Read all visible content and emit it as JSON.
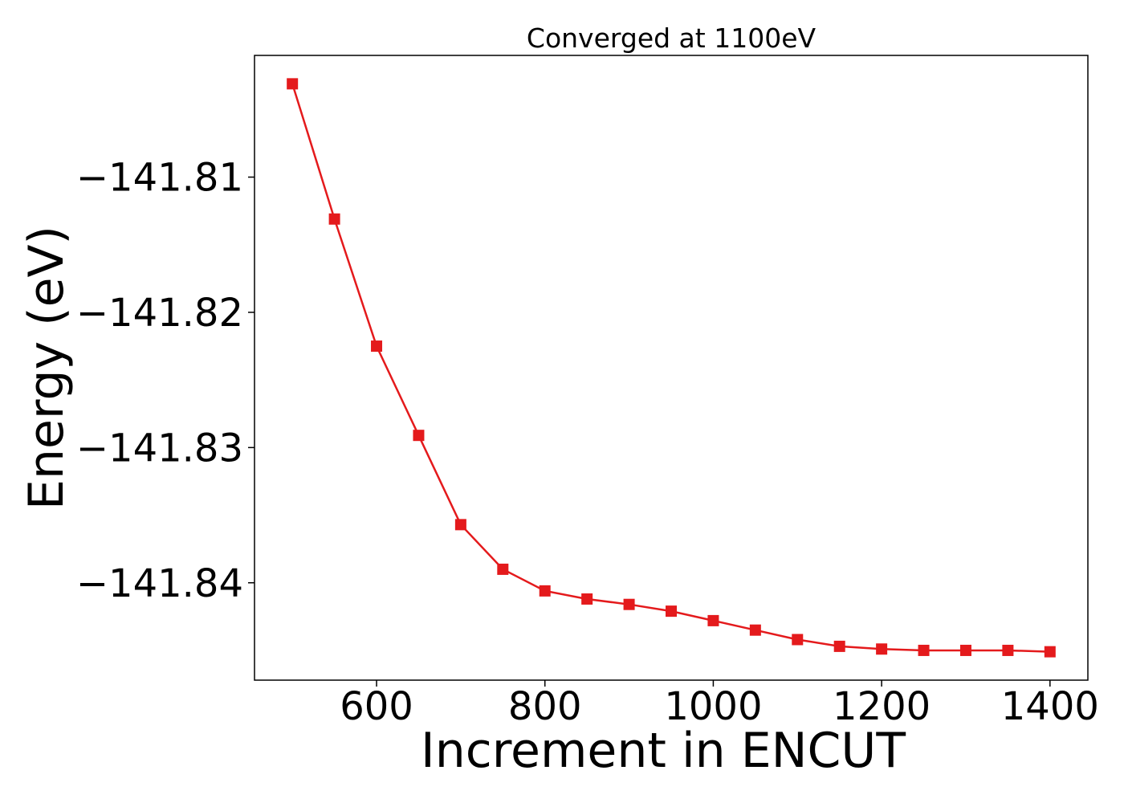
{
  "chart_data": {
    "type": "line",
    "title": "Converged at 1100eV",
    "xlabel": "Increment in ENCUT",
    "ylabel": "Energy (eV)",
    "xlim": [
      455,
      1445
    ],
    "ylim": [
      -141.8472,
      -141.801
    ],
    "x_ticks": [
      600,
      800,
      1000,
      1200,
      1400
    ],
    "y_ticks": [
      -141.81,
      -141.82,
      -141.83,
      -141.84
    ],
    "y_tick_labels": [
      "−141.81",
      "−141.82",
      "−141.83",
      "−141.84"
    ],
    "grid": false,
    "legend": false,
    "series": [
      {
        "color": "#e41a1c",
        "marker": "square",
        "x": [
          500,
          550,
          600,
          650,
          700,
          750,
          800,
          850,
          900,
          950,
          1000,
          1050,
          1100,
          1150,
          1200,
          1250,
          1300,
          1350,
          1400
        ],
        "y": [
          -141.8031,
          -141.8131,
          -141.8225,
          -141.8291,
          -141.8357,
          -141.839,
          -141.8406,
          -141.8412,
          -141.8416,
          -141.8421,
          -141.8428,
          -141.8435,
          -141.8442,
          -141.8447,
          -141.8449,
          -141.845,
          -141.845,
          -141.845,
          -141.8451
        ]
      }
    ]
  }
}
